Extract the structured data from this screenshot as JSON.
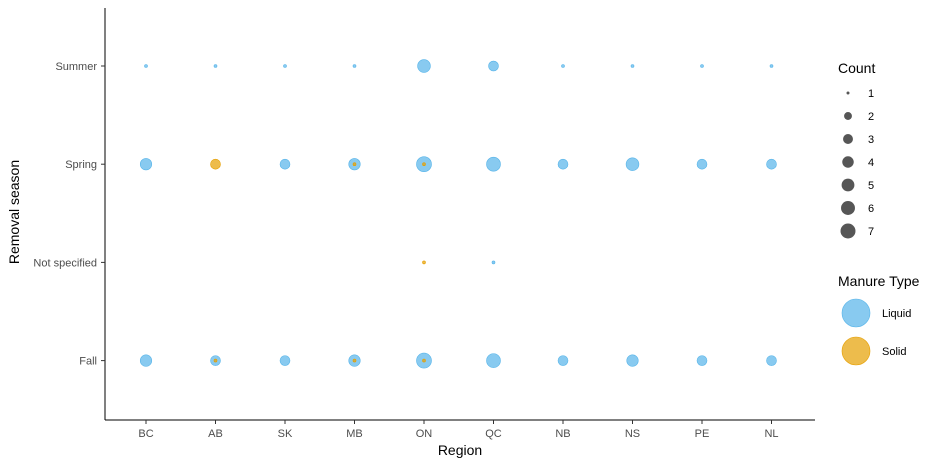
{
  "chart_data": {
    "type": "scatter",
    "xlabel": "Region",
    "ylabel": "Removal season",
    "categories": [
      "BC",
      "AB",
      "SK",
      "MB",
      "ON",
      "QC",
      "NB",
      "NS",
      "PE",
      "NL"
    ],
    "y_categories": [
      "Fall",
      "Not specified",
      "Spring",
      "Summer"
    ],
    "series": [
      {
        "name": "Liquid",
        "color": "#56B4E9",
        "points": [
          {
            "x": "BC",
            "y": "Summer",
            "count": 1
          },
          {
            "x": "AB",
            "y": "Summer",
            "count": 1
          },
          {
            "x": "SK",
            "y": "Summer",
            "count": 1
          },
          {
            "x": "MB",
            "y": "Summer",
            "count": 1
          },
          {
            "x": "ON",
            "y": "Summer",
            "count": 5
          },
          {
            "x": "QC",
            "y": "Summer",
            "count": 3
          },
          {
            "x": "NB",
            "y": "Summer",
            "count": 1
          },
          {
            "x": "NS",
            "y": "Summer",
            "count": 1
          },
          {
            "x": "PE",
            "y": "Summer",
            "count": 1
          },
          {
            "x": "NL",
            "y": "Summer",
            "count": 1
          },
          {
            "x": "BC",
            "y": "Spring",
            "count": 4
          },
          {
            "x": "SK",
            "y": "Spring",
            "count": 3
          },
          {
            "x": "MB",
            "y": "Spring",
            "count": 4
          },
          {
            "x": "ON",
            "y": "Spring",
            "count": 7
          },
          {
            "x": "QC",
            "y": "Spring",
            "count": 6
          },
          {
            "x": "NB",
            "y": "Spring",
            "count": 3
          },
          {
            "x": "NS",
            "y": "Spring",
            "count": 5
          },
          {
            "x": "PE",
            "y": "Spring",
            "count": 3
          },
          {
            "x": "NL",
            "y": "Spring",
            "count": 3
          },
          {
            "x": "QC",
            "y": "Not specified",
            "count": 1
          },
          {
            "x": "BC",
            "y": "Fall",
            "count": 4
          },
          {
            "x": "AB",
            "y": "Fall",
            "count": 3
          },
          {
            "x": "SK",
            "y": "Fall",
            "count": 3
          },
          {
            "x": "MB",
            "y": "Fall",
            "count": 4
          },
          {
            "x": "ON",
            "y": "Fall",
            "count": 7
          },
          {
            "x": "QC",
            "y": "Fall",
            "count": 6
          },
          {
            "x": "NB",
            "y": "Fall",
            "count": 3
          },
          {
            "x": "NS",
            "y": "Fall",
            "count": 4
          },
          {
            "x": "PE",
            "y": "Fall",
            "count": 3
          },
          {
            "x": "NL",
            "y": "Fall",
            "count": 3
          }
        ]
      },
      {
        "name": "Solid",
        "color": "#E69F00",
        "points": [
          {
            "x": "AB",
            "y": "Spring",
            "count": 3
          },
          {
            "x": "MB",
            "y": "Spring",
            "count": 1
          },
          {
            "x": "ON",
            "y": "Spring",
            "count": 1
          },
          {
            "x": "ON",
            "y": "Not specified",
            "count": 1
          },
          {
            "x": "AB",
            "y": "Fall",
            "count": 1
          },
          {
            "x": "MB",
            "y": "Fall",
            "count": 1
          },
          {
            "x": "ON",
            "y": "Fall",
            "count": 1
          }
        ]
      }
    ],
    "size_legend": {
      "title": "Count",
      "values": [
        1,
        2,
        3,
        4,
        5,
        6,
        7
      ],
      "color": "#444444"
    },
    "color_legend": {
      "title": "Manure Type",
      "entries": [
        "Liquid",
        "Solid"
      ]
    },
    "legend_position": "right",
    "grid": false
  }
}
